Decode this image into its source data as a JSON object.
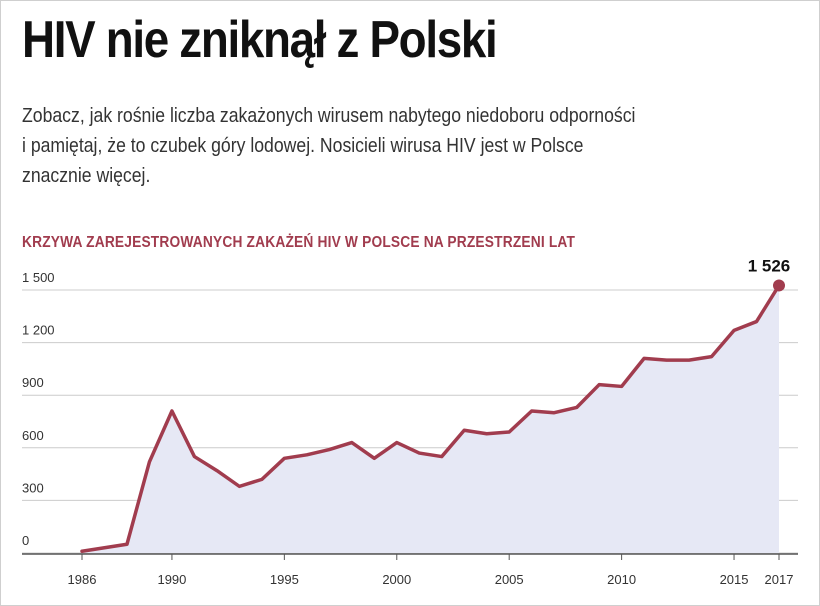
{
  "header": {
    "title": "HIV nie zniknął z Polski",
    "subtitle_lines": [
      "Zobacz, jak rośnie liczba zakażonych wirusem nabytego niedoboru odporności",
      "i pamiętaj, że to czubek góry lodowej. Nosicieli wirusa HIV jest w Polsce",
      "znacznie więcej."
    ]
  },
  "chart_data": {
    "type": "area",
    "title": "KRZYWA ZAREJESTROWANYCH ZAKAŻEŃ HIV W POLSCE NA PRZESTRZENI LAT",
    "x": [
      1986,
      1987,
      1988,
      1989,
      1990,
      1991,
      1992,
      1993,
      1994,
      1995,
      1996,
      1997,
      1998,
      1999,
      2000,
      2001,
      2002,
      2003,
      2004,
      2005,
      2006,
      2007,
      2008,
      2009,
      2010,
      2011,
      2012,
      2013,
      2014,
      2015,
      2016,
      2017
    ],
    "y": [
      10,
      30,
      50,
      520,
      810,
      550,
      470,
      380,
      420,
      540,
      560,
      590,
      630,
      540,
      630,
      570,
      550,
      700,
      680,
      690,
      810,
      800,
      830,
      960,
      950,
      1110,
      1100,
      1100,
      1120,
      1270,
      1320,
      1526
    ],
    "ylim": [
      0,
      1500
    ],
    "yticks": [
      0,
      300,
      600,
      900,
      1200,
      1500
    ],
    "ytick_labels": [
      "0",
      "300",
      "600",
      "900",
      "1 200",
      "1 500"
    ],
    "xticks": [
      1986,
      1990,
      1995,
      2000,
      2005,
      2010,
      2015,
      2017
    ],
    "highlight": {
      "x": 2017,
      "label": "1 526"
    },
    "grid": true,
    "colors": {
      "line": "#a13c4e",
      "fill": "#e6e8f5",
      "grid": "#cccccc",
      "title": "#a13c4e"
    }
  }
}
